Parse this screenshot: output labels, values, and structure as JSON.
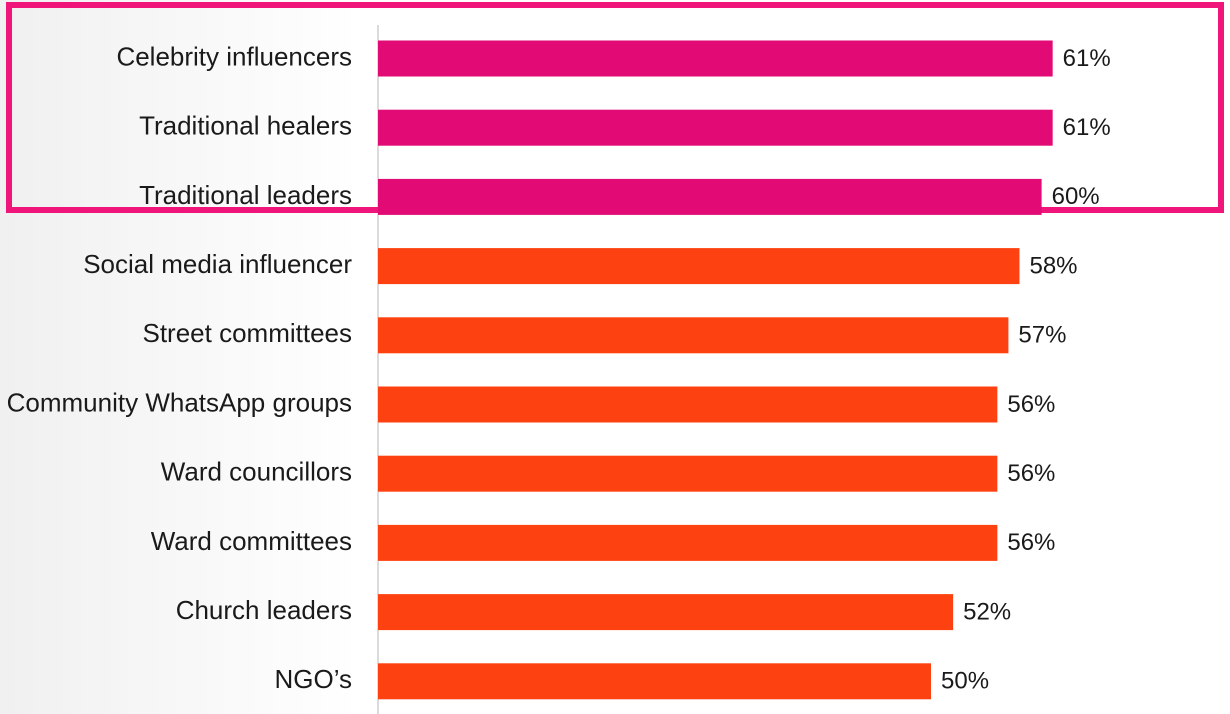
{
  "chart_data": {
    "type": "bar",
    "orientation": "horizontal",
    "categories": [
      "Celebrity influencers",
      "Traditional healers",
      "Traditional leaders",
      "Social media influencer",
      "Street committees",
      "Community WhatsApp groups",
      "Ward councillors",
      "Ward committees",
      "Church leaders",
      "NGO’s"
    ],
    "values": [
      61,
      61,
      60,
      58,
      57,
      56,
      56,
      56,
      52,
      50
    ],
    "value_labels": [
      "61%",
      "61%",
      "60%",
      "58%",
      "57%",
      "56%",
      "56%",
      "56%",
      "52%",
      "50%"
    ],
    "colors": [
      "#e20a74",
      "#e20a74",
      "#e20a74",
      "#fe4110",
      "#fe4110",
      "#fe4110",
      "#fe4110",
      "#fe4110",
      "#fe4110",
      "#fe4110"
    ]
  }
}
